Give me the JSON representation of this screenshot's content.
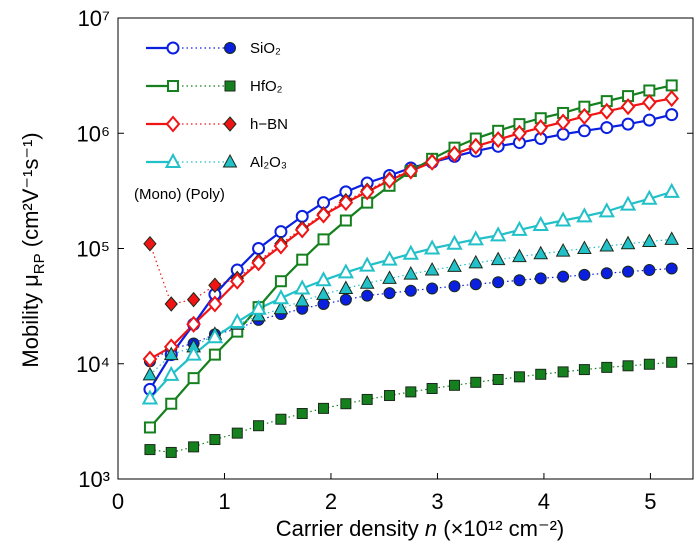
{
  "chart_data": {
    "type": "line",
    "y_log": true,
    "ylabel": [
      "Mobility μ",
      "RP",
      " (cm²V⁻¹s⁻¹)"
    ],
    "xlabel": [
      "Carrier density ",
      "n",
      " (×10¹² cm⁻²)"
    ],
    "annotation": "(Mono) (Poly)",
    "x": [
      0.3,
      0.5,
      0.71,
      0.91,
      1.12,
      1.32,
      1.53,
      1.73,
      1.93,
      2.14,
      2.34,
      2.55,
      2.75,
      2.95,
      3.16,
      3.36,
      3.57,
      3.77,
      3.97,
      4.18,
      4.38,
      4.59,
      4.79,
      4.99,
      5.2
    ],
    "xlim": [
      0,
      5.4
    ],
    "xticks": [
      0,
      1,
      2,
      3,
      4,
      5
    ],
    "ylim": [
      1000,
      10000000
    ],
    "yticks": [
      {
        "value": 1000,
        "label": "10³"
      },
      {
        "value": 10000,
        "label": "10⁴"
      },
      {
        "value": 100000,
        "label": "10⁵"
      },
      {
        "value": 1000000,
        "label": "10⁶"
      },
      {
        "value": 10000000,
        "label": "10⁷"
      }
    ],
    "series": [
      {
        "name": "SiO₂",
        "color": "#0a1fe0",
        "marker": "circle",
        "values": [
          6000,
          12000,
          22000,
          40000,
          65000,
          100000,
          140000,
          190000,
          250000,
          310000,
          370000,
          430000,
          500000,
          560000,
          630000,
          700000,
          770000,
          830000,
          900000,
          980000,
          1050000,
          1120000,
          1200000,
          1300000,
          1450000
        ],
        "poly_values": [
          10500,
          13500,
          15000,
          18000,
          20000,
          24000,
          27000,
          30000,
          33000,
          36000,
          39000,
          41000,
          43000,
          45000,
          47000,
          49000,
          51000,
          53000,
          55000,
          57000,
          59000,
          61000,
          63000,
          65000,
          67000
        ]
      },
      {
        "name": "HfO₂",
        "color": "#14801e",
        "marker": "square",
        "values": [
          2800,
          4500,
          7500,
          12000,
          19000,
          31000,
          52000,
          80000,
          120000,
          175000,
          250000,
          350000,
          470000,
          600000,
          750000,
          900000,
          1050000,
          1200000,
          1350000,
          1500000,
          1700000,
          1900000,
          2100000,
          2350000,
          2600000
        ],
        "poly_values": [
          1800,
          1700,
          1900,
          2200,
          2500,
          2900,
          3300,
          3700,
          4100,
          4500,
          4900,
          5300,
          5700,
          6100,
          6500,
          6900,
          7300,
          7700,
          8100,
          8500,
          8900,
          9300,
          9600,
          9900,
          10300
        ]
      },
      {
        "name": "h−BN",
        "color": "#f01414",
        "marker": "diamond",
        "values": [
          11000,
          14000,
          22000,
          33000,
          52000,
          75000,
          105000,
          145000,
          195000,
          250000,
          310000,
          390000,
          470000,
          560000,
          660000,
          770000,
          880000,
          1000000,
          1120000,
          1250000,
          1400000,
          1550000,
          1700000,
          1850000,
          2000000
        ],
        "poly_values": [
          110000,
          33000,
          36000,
          48000,
          55000,
          78000,
          110000,
          150000,
          200000,
          260000,
          320000,
          400000,
          480000,
          570000,
          670000,
          780000,
          890000,
          1010000,
          1130000,
          1260000,
          1410000,
          1560000,
          1710000,
          1860000,
          2010000
        ]
      },
      {
        "name": "Al₂O₃",
        "color": "#22c0c8",
        "marker": "triangle",
        "values": [
          5000,
          8000,
          12000,
          17000,
          23000,
          30000,
          37000,
          45000,
          53000,
          62000,
          71000,
          80000,
          90000,
          100000,
          110000,
          120000,
          130000,
          145000,
          160000,
          175000,
          190000,
          210000,
          240000,
          270000,
          310000
        ],
        "poly_values": [
          8000,
          12000,
          14000,
          18000,
          22000,
          26000,
          30000,
          35000,
          40000,
          45000,
          50000,
          55000,
          60000,
          65000,
          70000,
          75000,
          80000,
          85000,
          90000,
          95000,
          100000,
          105000,
          110000,
          115000,
          120000
        ]
      }
    ]
  }
}
